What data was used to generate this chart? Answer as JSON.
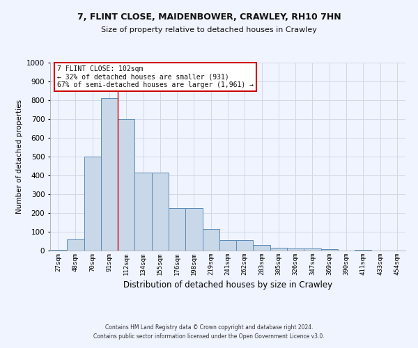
{
  "title1": "7, FLINT CLOSE, MAIDENBOWER, CRAWLEY, RH10 7HN",
  "title2": "Size of property relative to detached houses in Crawley",
  "xlabel": "Distribution of detached houses by size in Crawley",
  "ylabel": "Number of detached properties",
  "categories": [
    "27sqm",
    "48sqm",
    "70sqm",
    "91sqm",
    "112sqm",
    "134sqm",
    "155sqm",
    "176sqm",
    "198sqm",
    "219sqm",
    "241sqm",
    "262sqm",
    "283sqm",
    "305sqm",
    "326sqm",
    "347sqm",
    "369sqm",
    "390sqm",
    "411sqm",
    "433sqm",
    "454sqm"
  ],
  "values": [
    5,
    60,
    500,
    810,
    700,
    415,
    415,
    225,
    225,
    115,
    55,
    55,
    30,
    15,
    10,
    10,
    8,
    0,
    5,
    0,
    0
  ],
  "bar_color": "#c8d8e8",
  "bar_edge_color": "#5a8ab8",
  "property_line_x": 3.5,
  "annotation_line1": "7 FLINT CLOSE: 102sqm",
  "annotation_line2": "← 32% of detached houses are smaller (931)",
  "annotation_line3": "67% of semi-detached houses are larger (1,961) →",
  "annotation_box_color": "#ffffff",
  "annotation_box_edge_color": "#cc0000",
  "ylim": [
    0,
    1000
  ],
  "yticks": [
    0,
    100,
    200,
    300,
    400,
    500,
    600,
    700,
    800,
    900,
    1000
  ],
  "footer1": "Contains HM Land Registry data © Crown copyright and database right 2024.",
  "footer2": "Contains public sector information licensed under the Open Government Licence v3.0.",
  "grid_color": "#d0d8e8",
  "vline_color": "#cc0000",
  "background_color": "#f0f4ff"
}
